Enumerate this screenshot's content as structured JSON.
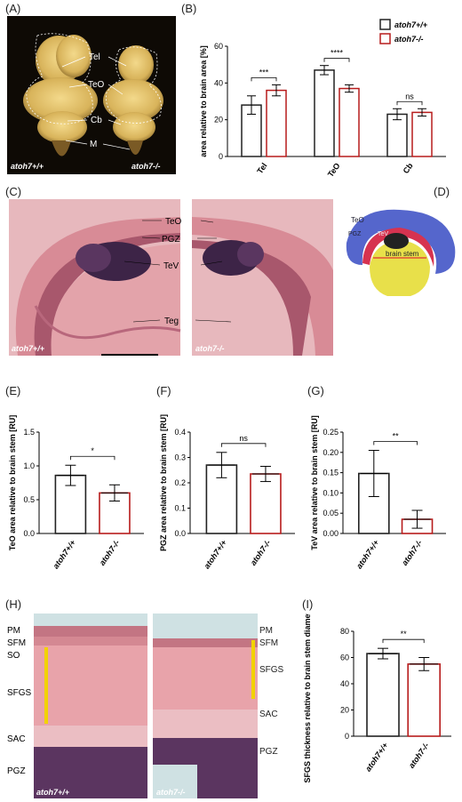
{
  "colors": {
    "wt": "#222222",
    "ko": "#b71c1c",
    "he_bg": "#e9a9aa",
    "he_dark": "#3b2447",
    "tissue_h": "#d7828d"
  },
  "panels": {
    "A": {
      "label": "(A)",
      "annotations": [
        "Tel",
        "TeO",
        "Cb",
        "M"
      ],
      "wt_label": "atoh7+/+",
      "ko_label": "atoh7-/-"
    },
    "C": {
      "label": "(C)",
      "annotations": [
        "TeO",
        "PGZ",
        "TeV",
        "Teg"
      ],
      "wt_label": "atoh7+/+",
      "ko_label": "atoh7-/-"
    },
    "D": {
      "label": "(D)",
      "annotations": [
        "TeO",
        "PGZ",
        "TeV",
        "brain stem"
      ]
    },
    "H": {
      "label": "(H)",
      "left_layers": [
        "PM",
        "SFM",
        "SO",
        "SFGS",
        "SAC",
        "PGZ"
      ],
      "right_layers": [
        "PM",
        "SFM",
        "SFGS",
        "SAC",
        "PGZ"
      ],
      "wt_label": "atoh7+/+",
      "ko_label": "atoh7-/-"
    }
  },
  "chart_data": [
    {
      "id": "B",
      "label": "(B)",
      "type": "bar",
      "ylabel": "area relative to brain area [%]",
      "ylim": [
        0,
        60
      ],
      "yticks": [
        0,
        20,
        40,
        60
      ],
      "categories": [
        "Tel",
        "TeO",
        "Cb"
      ],
      "legend": [
        "atoh7+/+",
        "atoh7-/-"
      ],
      "series": [
        {
          "name": "atoh7+/+",
          "values": [
            28,
            47,
            23
          ],
          "errors": [
            5,
            2.5,
            3
          ]
        },
        {
          "name": "atoh7-/-",
          "values": [
            36,
            37,
            24
          ],
          "errors": [
            3,
            2,
            2
          ]
        }
      ],
      "significance": [
        "***",
        "****",
        "ns"
      ]
    },
    {
      "id": "E",
      "label": "(E)",
      "type": "bar",
      "ylabel": "TeO area relative to brain stem [RU]",
      "ylim": [
        0,
        1.5
      ],
      "yticks": [
        0.0,
        0.5,
        1.0,
        1.5
      ],
      "categories": [
        "atoh7+/+",
        "atoh7-/-"
      ],
      "values": [
        0.86,
        0.6
      ],
      "errors": [
        0.15,
        0.12
      ],
      "significance": "*"
    },
    {
      "id": "F",
      "label": "(F)",
      "type": "bar",
      "ylabel": "PGZ area relative to brain stem [RU]",
      "ylim": [
        0,
        0.4
      ],
      "yticks": [
        0.0,
        0.1,
        0.2,
        0.3,
        0.4
      ],
      "categories": [
        "atoh7+/+",
        "atoh7-/-"
      ],
      "values": [
        0.27,
        0.235
      ],
      "errors": [
        0.05,
        0.03
      ],
      "significance": "ns"
    },
    {
      "id": "G",
      "label": "(G)",
      "type": "bar",
      "ylabel": "TeV area relative to brain stem [RU]",
      "ylim": [
        0,
        0.25
      ],
      "yticks": [
        0.0,
        0.05,
        0.1,
        0.15,
        0.2,
        0.25
      ],
      "categories": [
        "atoh7+/+",
        "atoh7-/-"
      ],
      "values": [
        0.148,
        0.035
      ],
      "errors": [
        0.057,
        0.022
      ],
      "significance": "**"
    },
    {
      "id": "I",
      "label": "(I)",
      "type": "bar",
      "ylabel": "SFGS thickness relative to brain stem diameter [RU]",
      "ylim": [
        0,
        80
      ],
      "yticks": [
        0,
        20,
        40,
        60,
        80
      ],
      "categories": [
        "atoh7+/+",
        "atoh7-/-"
      ],
      "values": [
        63,
        55
      ],
      "errors": [
        4,
        5
      ],
      "significance": "**"
    }
  ]
}
